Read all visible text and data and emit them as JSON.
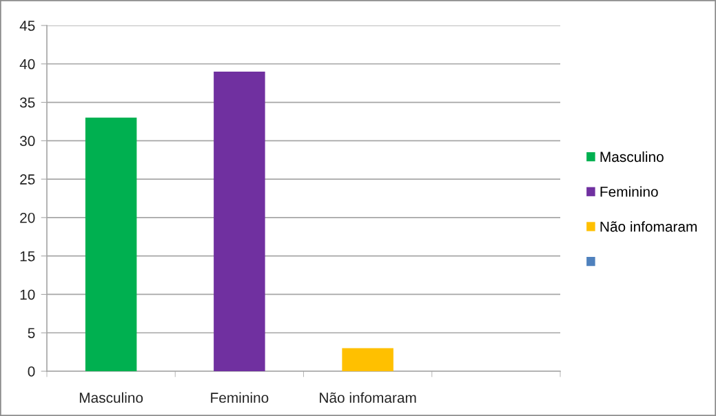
{
  "chart_data": {
    "type": "bar",
    "categories": [
      "Masculino",
      "Feminino",
      "Não infomaram",
      null
    ],
    "series": [
      {
        "name": "Masculino",
        "color": "#00b050",
        "values": [
          33,
          null,
          null,
          null
        ]
      },
      {
        "name": "Feminino",
        "color": "#7030a0",
        "values": [
          null,
          39,
          null,
          null
        ]
      },
      {
        "name": "Não infomaram",
        "color": "#ffc000",
        "values": [
          null,
          null,
          3,
          null
        ]
      },
      {
        "color": "#4f81bd",
        "values": [
          null,
          null,
          null,
          null
        ]
      }
    ],
    "ylim": [
      0,
      45
    ],
    "yticks": [
      0,
      5,
      10,
      15,
      20,
      25,
      30,
      35,
      40,
      45
    ],
    "grid": "y",
    "legend": "right"
  }
}
